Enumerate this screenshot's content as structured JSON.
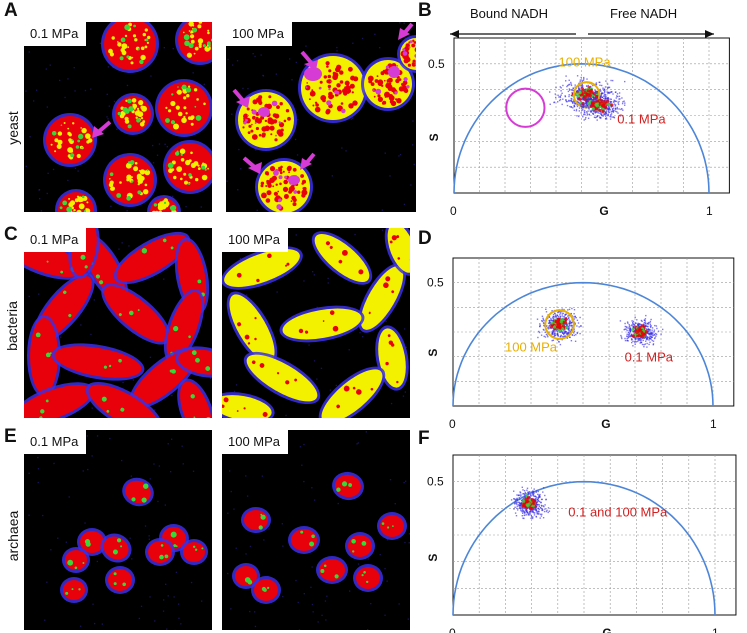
{
  "panels": {
    "A": "A",
    "B": "B",
    "C": "C",
    "D": "D",
    "E": "E",
    "F": "F"
  },
  "rows": {
    "yeast": "yeast",
    "bacteria": "bacteria",
    "archaea": "archaea"
  },
  "microscopy": {
    "low_pressure_label": "0.1 MPa",
    "high_pressure_label": "100 MPa"
  },
  "colors": {
    "red": "#e8000a",
    "yellow": "#f3f000",
    "blue": "#3b2fe6",
    "magenta": "#d63bd6",
    "green": "#38d838",
    "semicircle": "#4d86d8",
    "gold": "#e8b000",
    "label_red": "#d42020"
  },
  "header": {
    "bound": "Bound NADH",
    "free": "Free NADH"
  },
  "chart_data": [
    {
      "panel": "B",
      "type": "scatter",
      "xlabel": "G",
      "ylabel": "S",
      "xlim": [
        0,
        1
      ],
      "ylim": [
        0,
        0.6
      ],
      "xticks": [
        "0",
        "1"
      ],
      "yticks": [
        "0.5"
      ],
      "grid": true,
      "clusters": [
        {
          "name": "100 MPa",
          "center": [
            0.52,
            0.38
          ],
          "spread": [
            0.09,
            0.05
          ],
          "ring_radius": 0.05,
          "label_color": "gold"
        },
        {
          "name": "0.1 MPa",
          "center": [
            0.57,
            0.34
          ],
          "spread": [
            0.07,
            0.04
          ],
          "label_color": "label_red"
        }
      ],
      "highlight_circle": {
        "center": [
          0.28,
          0.33
        ],
        "radius": 0.075,
        "color": "magenta"
      },
      "labels": [
        "100 MPa",
        "0.1 MPa"
      ]
    },
    {
      "panel": "D",
      "type": "scatter",
      "xlabel": "G",
      "ylabel": "S",
      "xlim": [
        0,
        1
      ],
      "ylim": [
        0,
        0.6
      ],
      "xticks": [
        "0",
        "1"
      ],
      "yticks": [
        "0.5"
      ],
      "grid": true,
      "clusters": [
        {
          "name": "100 MPa",
          "center": [
            0.41,
            0.33
          ],
          "spread": [
            0.06,
            0.05
          ],
          "ring_radius": 0.055,
          "label_color": "gold"
        },
        {
          "name": "0.1 MPa",
          "center": [
            0.72,
            0.3
          ],
          "spread": [
            0.05,
            0.04
          ],
          "label_color": "label_red"
        }
      ],
      "labels": [
        "100 MPa",
        "0.1 MPa"
      ]
    },
    {
      "panel": "F",
      "type": "scatter",
      "xlabel": "G",
      "ylabel": "S",
      "xlim": [
        0,
        1
      ],
      "ylim": [
        0,
        0.6
      ],
      "xticks": [
        "0",
        "1"
      ],
      "yticks": [
        "0.5"
      ],
      "grid": true,
      "clusters": [
        {
          "name": "0.1 and 100 MPa",
          "center": [
            0.29,
            0.42
          ],
          "spread": [
            0.05,
            0.04
          ],
          "label_color": "label_red"
        }
      ],
      "labels": [
        "0.1 and 100 MPa"
      ]
    }
  ]
}
